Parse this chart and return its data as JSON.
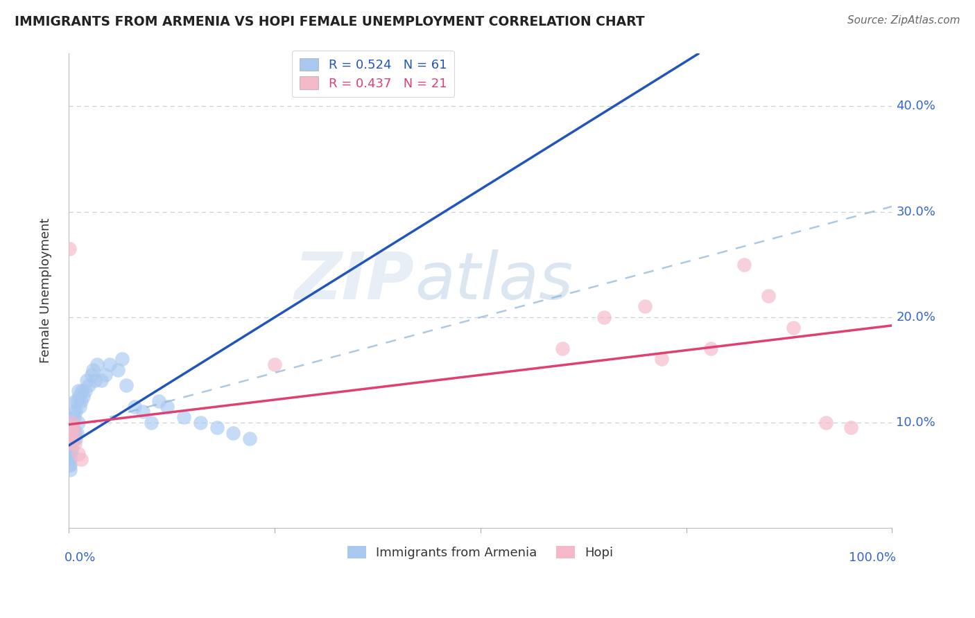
{
  "title": "IMMIGRANTS FROM ARMENIA VS HOPI FEMALE UNEMPLOYMENT CORRELATION CHART",
  "source": "Source: ZipAtlas.com",
  "ylabel": "Female Unemployment",
  "legend_label_1": "Immigrants from Armenia",
  "legend_label_2": "Hopi",
  "r1": 0.524,
  "n1": 61,
  "r2": 0.437,
  "n2": 21,
  "color_blue": "#A8C8F0",
  "color_pink": "#F5B8C8",
  "color_blue_line": "#2255BB",
  "color_pink_line": "#E04070",
  "color_blue_dash": "#90B8D8",
  "color_axis_label": "#3366CC",
  "color_title": "#222222",
  "color_grid": "#C8D0DC",
  "xlim": [
    0,
    1.0
  ],
  "ylim": [
    0,
    0.45
  ],
  "yticks": [
    0.0,
    0.1,
    0.2,
    0.3,
    0.4
  ],
  "ytick_labels": [
    "",
    "10.0%",
    "20.0%",
    "30.0%",
    "40.0%"
  ],
  "blue_line_x0": 0.0,
  "blue_line_y0": 0.078,
  "blue_line_x1": 0.22,
  "blue_line_y1": 0.185,
  "pink_line_x0": 0.0,
  "pink_line_y0": 0.098,
  "pink_line_x1": 1.0,
  "pink_line_y1": 0.192,
  "dash_line_x0": 0.05,
  "dash_line_y0": 0.105,
  "dash_line_x1": 1.0,
  "dash_line_y1": 0.305,
  "blue_x": [
    0.001,
    0.001,
    0.001,
    0.001,
    0.001,
    0.002,
    0.002,
    0.002,
    0.002,
    0.002,
    0.003,
    0.003,
    0.003,
    0.003,
    0.004,
    0.004,
    0.004,
    0.004,
    0.005,
    0.005,
    0.005,
    0.006,
    0.006,
    0.007,
    0.007,
    0.008,
    0.008,
    0.009,
    0.009,
    0.01,
    0.01,
    0.012,
    0.012,
    0.013,
    0.014,
    0.015,
    0.016,
    0.018,
    0.02,
    0.022,
    0.025,
    0.028,
    0.03,
    0.032,
    0.035,
    0.04,
    0.045,
    0.05,
    0.06,
    0.065,
    0.07,
    0.08,
    0.09,
    0.1,
    0.11,
    0.12,
    0.14,
    0.16,
    0.18,
    0.2,
    0.22
  ],
  "blue_y": [
    0.08,
    0.075,
    0.07,
    0.065,
    0.06,
    0.075,
    0.07,
    0.065,
    0.06,
    0.055,
    0.09,
    0.085,
    0.08,
    0.07,
    0.095,
    0.09,
    0.085,
    0.075,
    0.1,
    0.095,
    0.085,
    0.11,
    0.09,
    0.105,
    0.085,
    0.12,
    0.09,
    0.11,
    0.085,
    0.12,
    0.09,
    0.13,
    0.1,
    0.125,
    0.115,
    0.12,
    0.13,
    0.125,
    0.13,
    0.14,
    0.135,
    0.145,
    0.15,
    0.14,
    0.155,
    0.14,
    0.145,
    0.155,
    0.15,
    0.16,
    0.135,
    0.115,
    0.11,
    0.1,
    0.12,
    0.115,
    0.105,
    0.1,
    0.095,
    0.09,
    0.085
  ],
  "pink_x": [
    0.001,
    0.002,
    0.003,
    0.003,
    0.004,
    0.005,
    0.006,
    0.008,
    0.012,
    0.015,
    0.25,
    0.6,
    0.65,
    0.7,
    0.72,
    0.78,
    0.82,
    0.85,
    0.88,
    0.92,
    0.95
  ],
  "pink_y": [
    0.265,
    0.09,
    0.08,
    0.085,
    0.1,
    0.095,
    0.09,
    0.08,
    0.07,
    0.065,
    0.155,
    0.17,
    0.2,
    0.21,
    0.16,
    0.17,
    0.25,
    0.22,
    0.19,
    0.1,
    0.095
  ],
  "watermark_line1": "ZIP",
  "watermark_line2": "atlas",
  "background_color": "#FFFFFF"
}
